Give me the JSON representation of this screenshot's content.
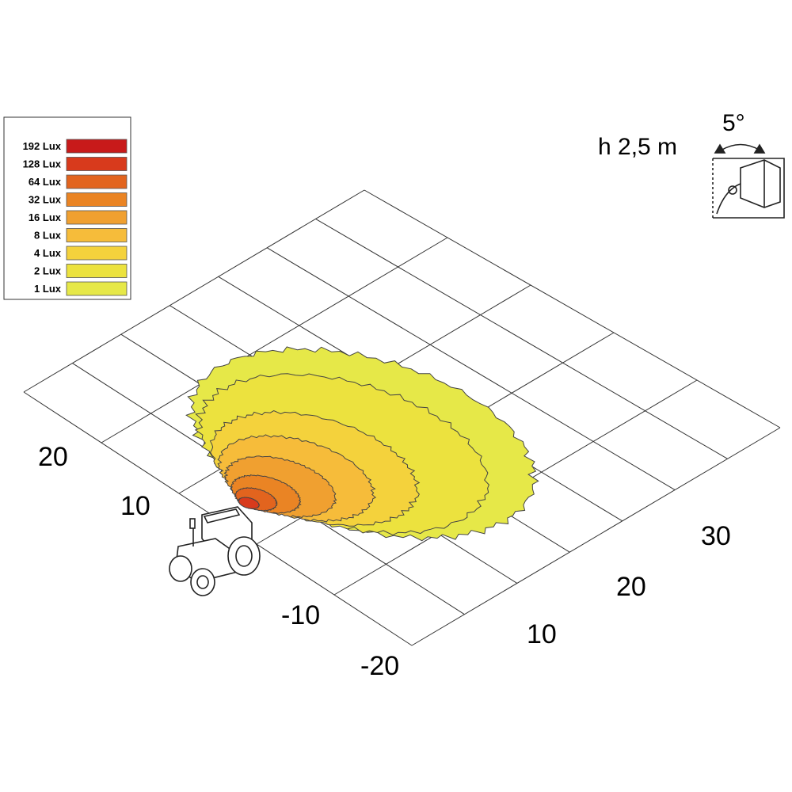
{
  "legend": {
    "entries": [
      {
        "label": "192 Lux",
        "color": "#c81a1a"
      },
      {
        "label": "128 Lux",
        "color": "#d83a1c"
      },
      {
        "label": "64 Lux",
        "color": "#e2641e"
      },
      {
        "label": "32 Lux",
        "color": "#ea8424"
      },
      {
        "label": "16 Lux",
        "color": "#f0a030"
      },
      {
        "label": "8 Lux",
        "color": "#f6bc3a"
      },
      {
        "label": "4 Lux",
        "color": "#f4d23c"
      },
      {
        "label": "2 Lux",
        "color": "#ece23e"
      },
      {
        "label": "1 Lux",
        "color": "#e6e848"
      }
    ]
  },
  "mount": {
    "height": "h 2,5 m",
    "angle": "5°"
  },
  "axes": {
    "left_labels": [
      "20",
      "10",
      "-10",
      "-20"
    ],
    "right_labels": [
      "10",
      "20",
      "30"
    ]
  }
}
